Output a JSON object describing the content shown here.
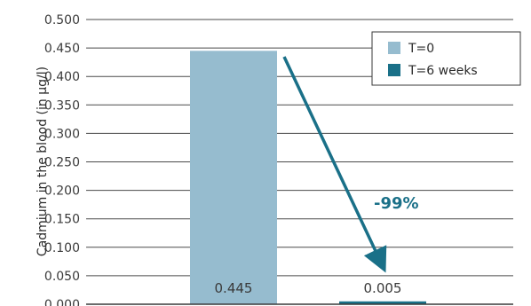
{
  "chart_data": {
    "type": "bar",
    "categories": [
      "",
      ""
    ],
    "series": [
      {
        "name": "T=0",
        "values": [
          0.445,
          null
        ],
        "color": "#96bccf"
      },
      {
        "name": "T=6 weeks",
        "values": [
          null,
          0.005
        ],
        "color": "#1a7088"
      }
    ],
    "data_labels": [
      "0.445",
      "0.005"
    ],
    "ylabel": "Cadmium in the blood (in µg/l)",
    "ylim": [
      0,
      0.5
    ],
    "yticks": [
      "0.000",
      "0.050",
      "0.100",
      "0.150",
      "0.200",
      "0.250",
      "0.300",
      "0.350",
      "0.400",
      "0.450",
      "0.500"
    ],
    "grid": true,
    "legend_position": "top-right",
    "annotation": {
      "text": "-99%",
      "color": "#1a7088"
    }
  }
}
